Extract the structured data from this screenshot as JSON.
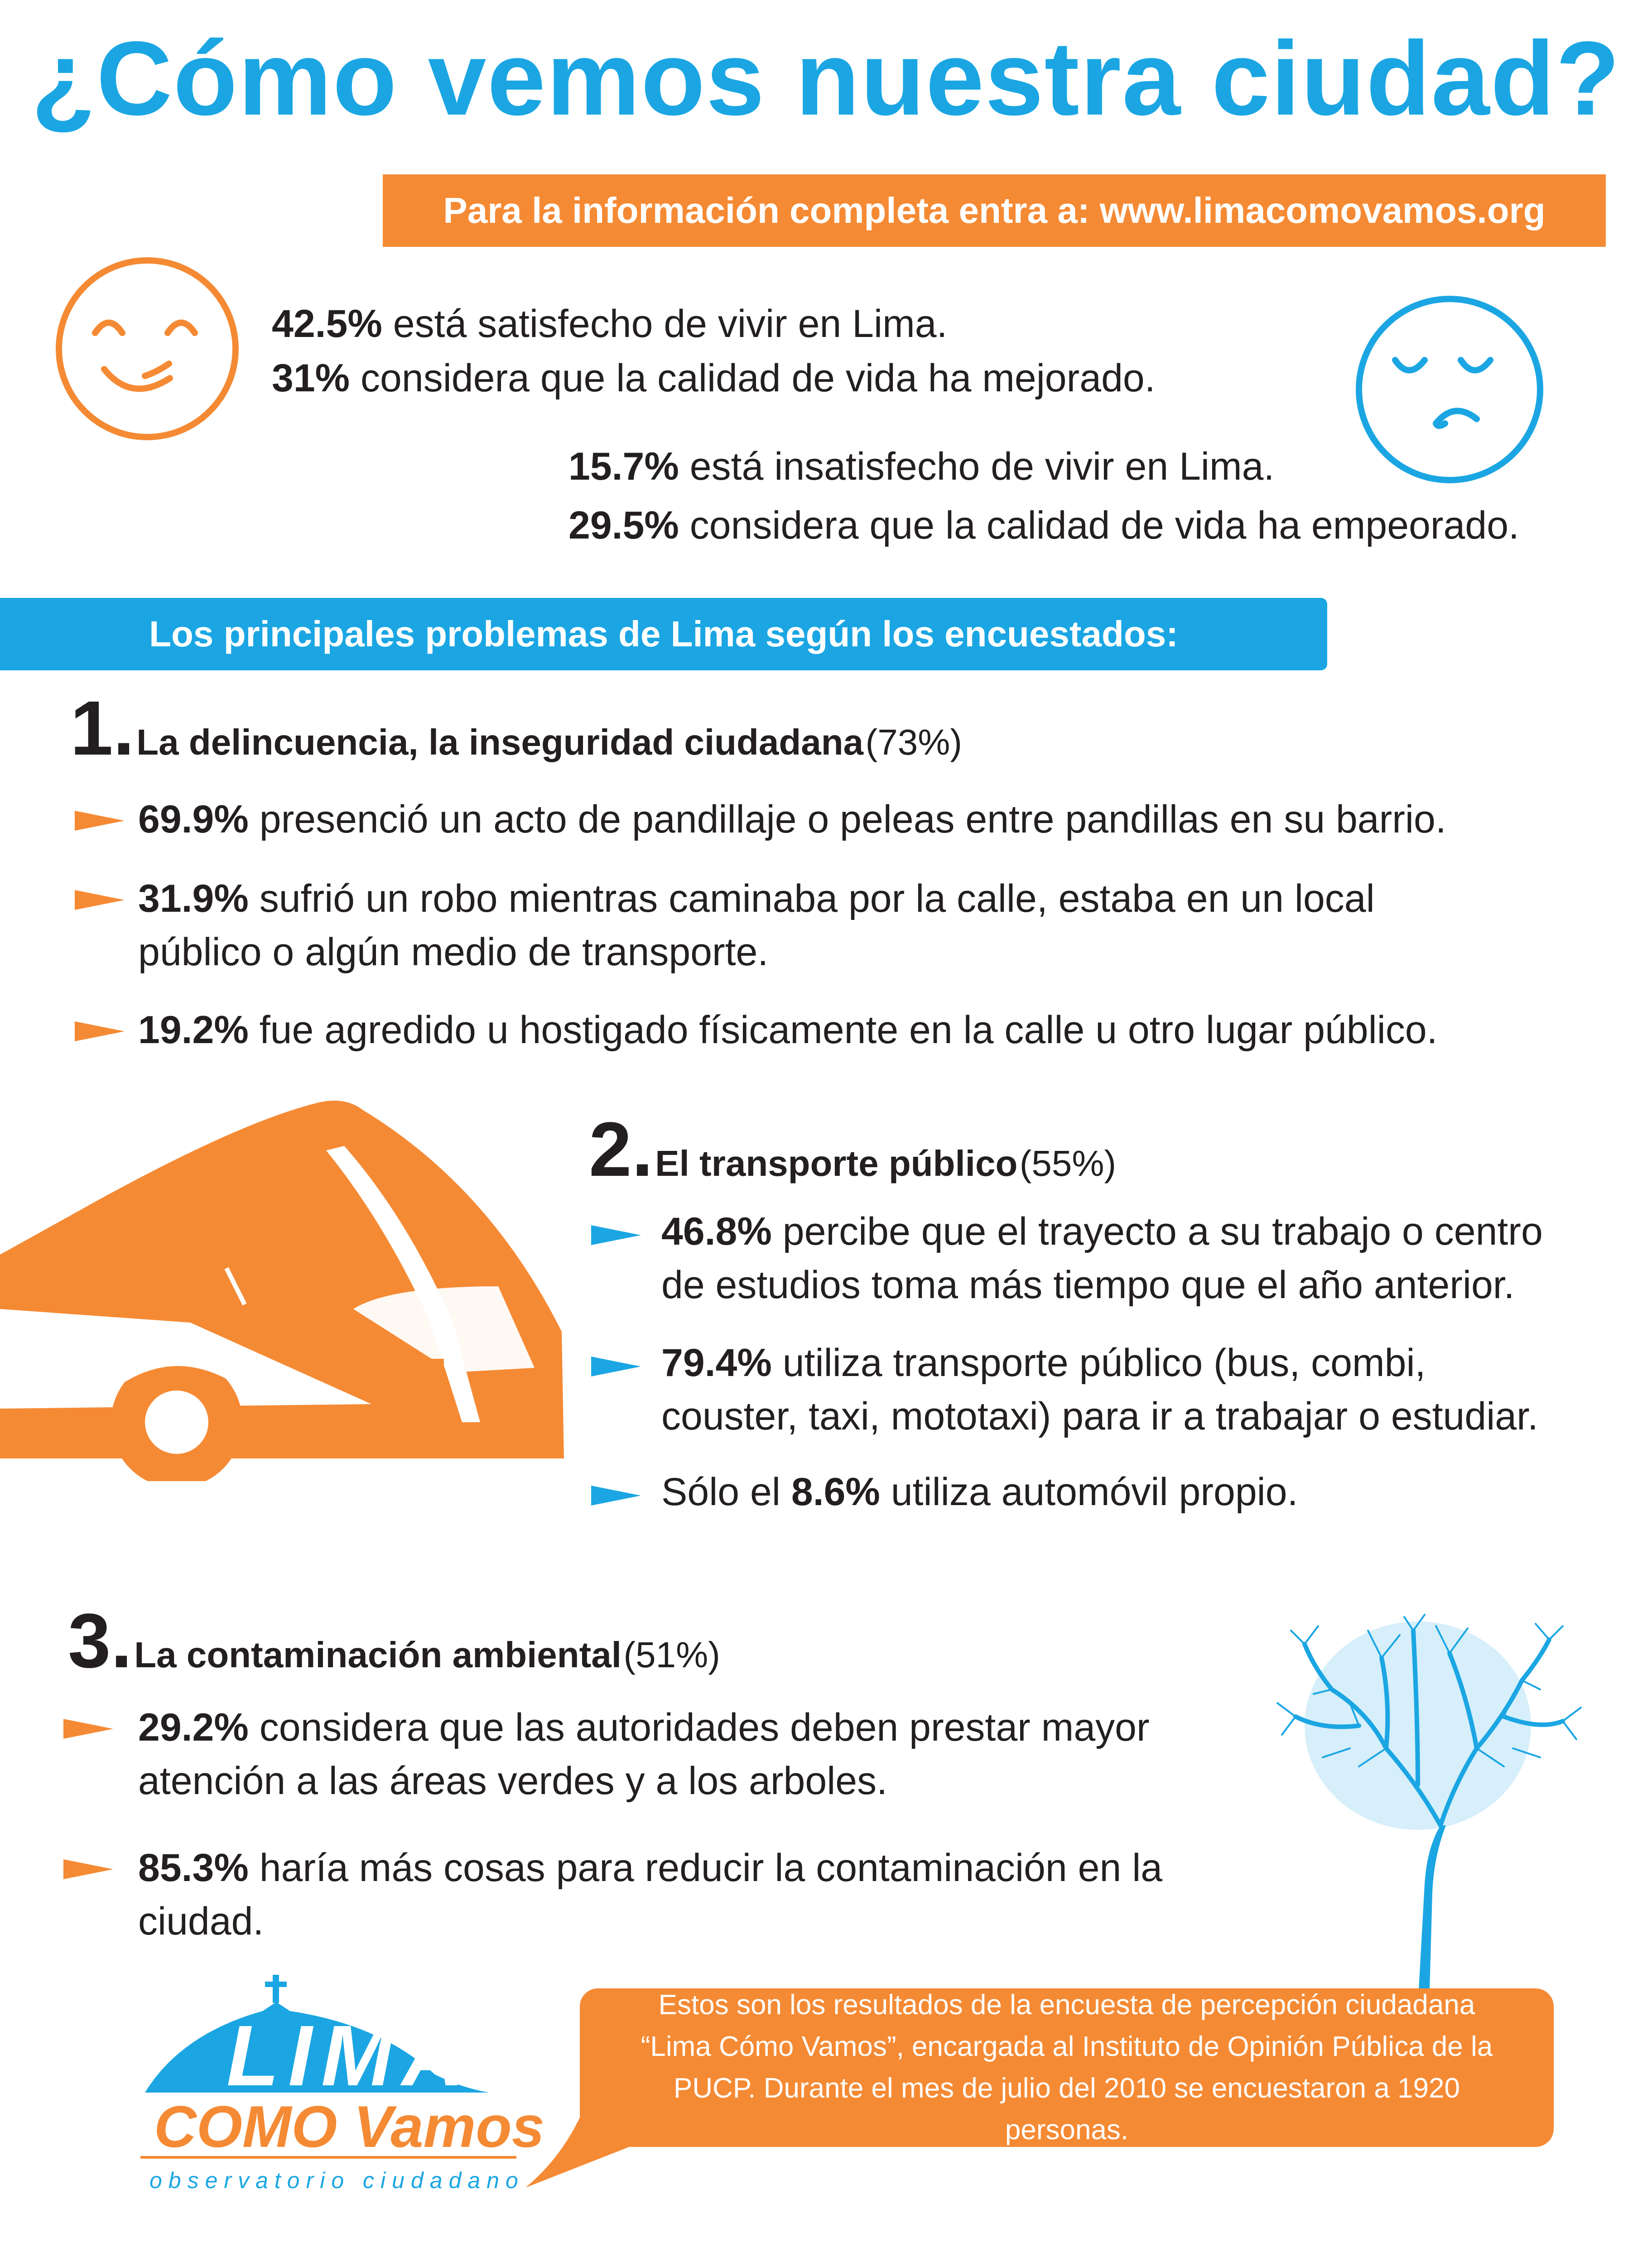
{
  "title": "¿Cómo vemos nuestra ciudad?",
  "url_banner": "Para la información completa entra a: www.limacomovamos.org",
  "satisfaction": [
    {
      "pct": "42.5%",
      "text": "está satisfecho de vivir en Lima."
    },
    {
      "pct": "31%",
      "text": "considera que la calidad de vida ha mejorado."
    },
    {
      "pct": "15.7%",
      "text": "está insatisfecho de vivir en Lima."
    },
    {
      "pct": "29.5%",
      "text": "considera que la calidad de vida ha empeorado."
    }
  ],
  "problems_heading": "Los principales problemas de Lima según los encuestados:",
  "problems": [
    {
      "number": "1.",
      "title": "La delincuencia, la inseguridad ciudadana",
      "pct": "(73%)",
      "items": [
        {
          "pct": "69.9%",
          "text": "presenció un acto de pandillaje o peleas entre pandillas en su barrio."
        },
        {
          "pct": "31.9%",
          "text": "sufrió un robo mientras caminaba por la calle, estaba en un local",
          "text2": "público o algún medio de transporte."
        },
        {
          "pct": "19.2%",
          "text": "fue agredido u hostigado físicamente en la calle u otro lugar público."
        }
      ]
    },
    {
      "number": "2.",
      "title": "El transporte público",
      "pct": "(55%)",
      "items": [
        {
          "pct": "46.8%",
          "text": "percibe que el trayecto a su trabajo o centro",
          "text2": "de estudios toma más tiempo que el año anterior."
        },
        {
          "pct": "79.4%",
          "text": "utiliza transporte público (bus, combi,",
          "text2": "couster, taxi, mototaxi) para ir a trabajar o estudiar."
        },
        {
          "prefix": "Sólo el",
          "pct": "8.6%",
          "text": "utiliza automóvil propio."
        }
      ]
    },
    {
      "number": "3.",
      "title": "La contaminación ambiental",
      "pct": "(51%)",
      "items": [
        {
          "pct": "29.2%",
          "text": "considera que las autoridades deben prestar mayor",
          "text2": "atención a las áreas verdes  y a los arboles."
        },
        {
          "pct": "85.3%",
          "text": "haría más cosas para reducir la contaminación en la",
          "text2": "ciudad."
        }
      ]
    }
  ],
  "footer_note": "Estos son los resultados de la encuesta de percepción ciudadana “Lima Cómo Vamos”, encargada al Instituto de Opinión Pública de la PUCP. Durante el mes de julio del 2010 se encuestaron a 1920 personas.",
  "logo": {
    "line1": "LIMA",
    "line2": "COMO Vamos",
    "line3": "observatorio ciudadano"
  },
  "colors": {
    "blue": "#1ba6e3",
    "orange": "#f58a34",
    "text": "#231f20"
  },
  "icons": {
    "happy": "happy-face-icon",
    "sad": "sad-face-icon",
    "bus": "bus-illustration",
    "tree": "tree-illustration",
    "bullet": "arrow-bullet-icon"
  }
}
